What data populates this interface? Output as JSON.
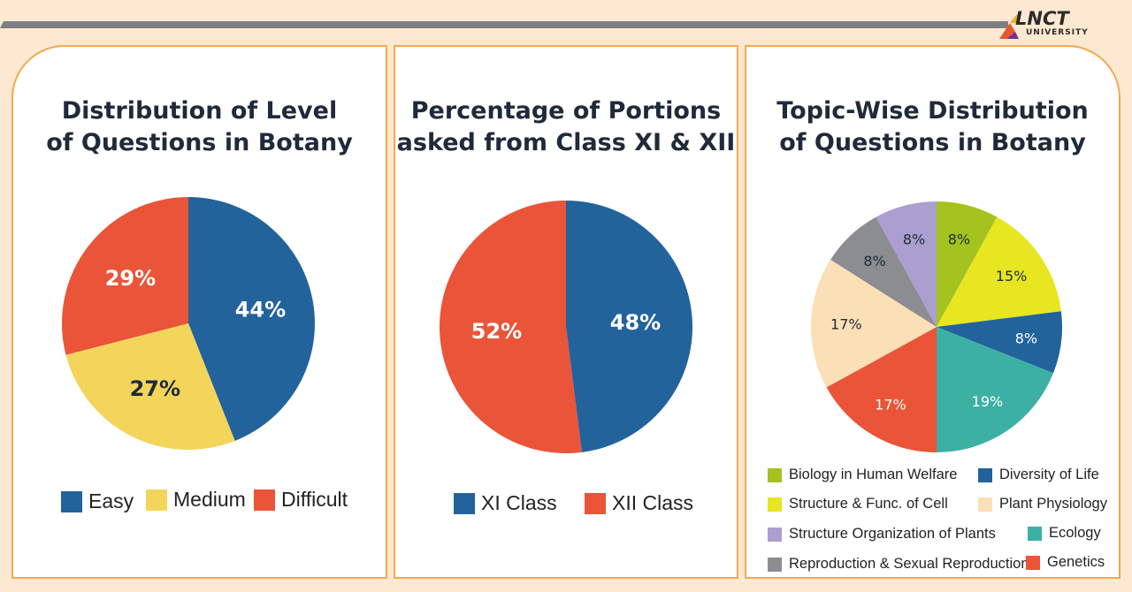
{
  "brand": {
    "name": "LNCT",
    "sub": "UNIVERSITY"
  },
  "colors": {
    "blue": "#23639b",
    "yellow": "#f3d55b",
    "red": "#ea5438",
    "lime": "#a4c31f",
    "brightyellow": "#e8e521",
    "peach": "#fbdfb6",
    "teal": "#3db0a4",
    "lavender": "#ab9fd1",
    "gray": "#8b8d91",
    "accent": "#f4a94e"
  },
  "chart_data": [
    {
      "type": "pie",
      "title_lines": [
        "Distribution of Level",
        "of Questions in Botany"
      ],
      "slices": [
        {
          "label": "Easy",
          "value": 44,
          "display": "44%",
          "color": "#23639b",
          "text_color": "#ffffff"
        },
        {
          "label": "Medium",
          "value": 27,
          "display": "27%",
          "color": "#f3d55b",
          "text_color": "#1f2a3a"
        },
        {
          "label": "Difficult",
          "value": 29,
          "display": "29%",
          "color": "#ea5438",
          "text_color": "#ffffff"
        }
      ],
      "legend": [
        "Easy",
        "Medium",
        "Difficult"
      ],
      "legend_placement": "bottom"
    },
    {
      "type": "pie",
      "title_lines": [
        "Percentage of Portions",
        "asked from Class XI & XII"
      ],
      "slices": [
        {
          "label": "XI Class",
          "value": 48,
          "display": "48%",
          "color": "#23639b",
          "text_color": "#ffffff"
        },
        {
          "label": "XII Class",
          "value": 52,
          "display": "52%",
          "color": "#ea5438",
          "text_color": "#ffffff"
        }
      ],
      "legend": [
        "XI Class",
        "XII Class"
      ],
      "legend_placement": "bottom"
    },
    {
      "type": "pie",
      "title_lines": [
        "Topic-Wise Distribution",
        "of Questions in Botany"
      ],
      "slices": [
        {
          "label": "Biology in Human Welfare",
          "value": 8,
          "display": "8%",
          "color": "#a4c31f",
          "text_color": "#1f2a3a"
        },
        {
          "label": "Structure & Func. of Cell",
          "value": 15,
          "display": "15%",
          "color": "#e8e521",
          "text_color": "#1f2a3a"
        },
        {
          "label": "Diversity of Life",
          "value": 8,
          "display": "8%",
          "color": "#23639b",
          "text_color": "#ffffff"
        },
        {
          "label": "Ecology",
          "value": 19,
          "display": "19%",
          "color": "#3db0a4",
          "text_color": "#ffffff"
        },
        {
          "label": "Genetics",
          "value": 17,
          "display": "17%",
          "color": "#ea5438",
          "text_color": "#ffffff"
        },
        {
          "label": "Plant Physiology",
          "value": 17,
          "display": "17%",
          "color": "#fbdfb6",
          "text_color": "#1f2a3a"
        },
        {
          "label": "Reproduction & Sexual Reproduction",
          "value": 8,
          "display": "8%",
          "color": "#8b8d91",
          "text_color": "#1f2a3a"
        },
        {
          "label": "Structure Organization of Plants",
          "value": 8,
          "display": "8%",
          "color": "#ab9fd1",
          "text_color": "#1f2a3a"
        }
      ],
      "legend": [
        "Biology in Human Welfare",
        "Diversity of Life",
        "Structure & Func. of Cell",
        "Plant Physiology",
        "Structure Organization of Plants",
        "Ecology",
        "Reproduction & Sexual Reproduction",
        "Genetics"
      ],
      "legend_placement": "bottom"
    }
  ]
}
